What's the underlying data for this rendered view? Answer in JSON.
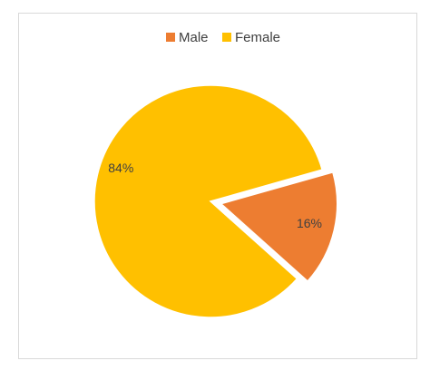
{
  "chart_data": {
    "type": "pie",
    "categories": [
      "Male",
      "Female"
    ],
    "values": [
      16,
      84
    ],
    "value_labels": [
      "16%",
      "84%"
    ],
    "colors": [
      "#ed7d31",
      "#ffc000"
    ]
  }
}
